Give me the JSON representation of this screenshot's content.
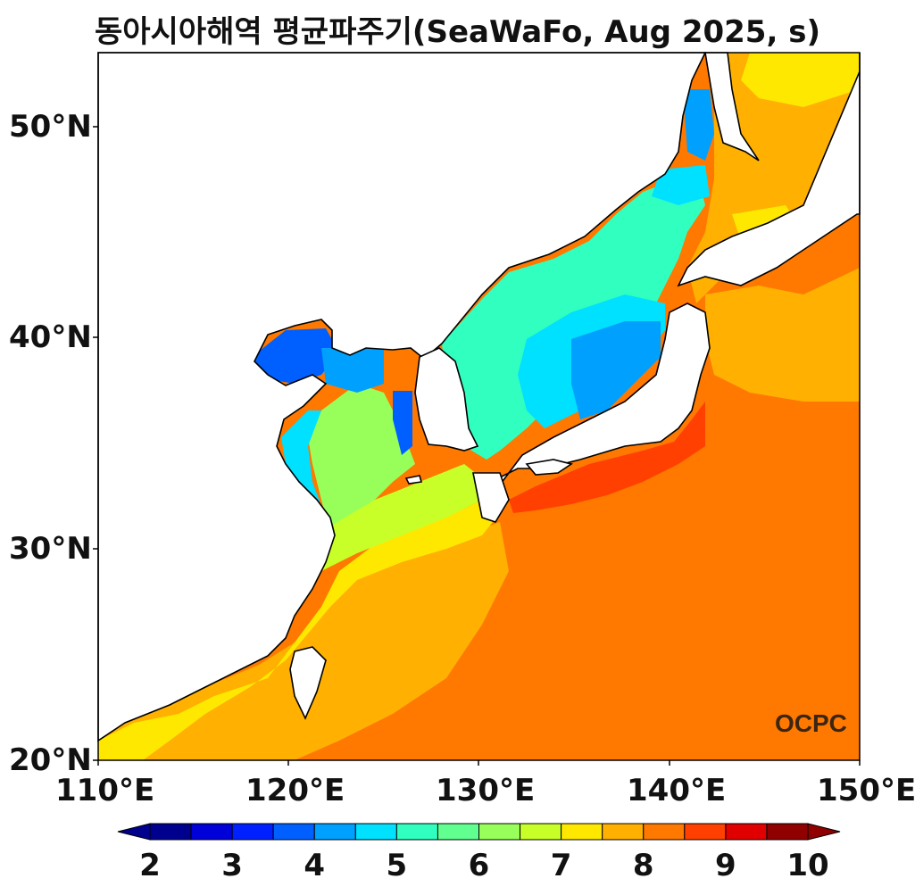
{
  "title": "동아시아해역 평균파주기(SeaWaFo, Aug 2025, s)",
  "map": {
    "lat_range": [
      20,
      53.5
    ],
    "lon_range": [
      110,
      150
    ],
    "lat_ticks": [
      "20°N",
      "30°N",
      "40°N",
      "50°N"
    ],
    "lon_ticks": [
      "110°E",
      "120°E",
      "130°E",
      "140°E",
      "150°E"
    ],
    "land_color": "#ffffff",
    "coastline_color": "#000000"
  },
  "colorbar": {
    "labels": [
      "2",
      "3",
      "4",
      "5",
      "6",
      "7",
      "8",
      "9",
      "10"
    ],
    "colors": [
      "#00008f",
      "#0000d8",
      "#0020ff",
      "#0060ff",
      "#00a0ff",
      "#00e0ff",
      "#30ffc0",
      "#60ff90",
      "#98ff5a",
      "#c8ff28",
      "#ffe800",
      "#ffb000",
      "#ff7800",
      "#ff4000",
      "#e00000",
      "#900000"
    ]
  },
  "logo": "OCPC"
}
